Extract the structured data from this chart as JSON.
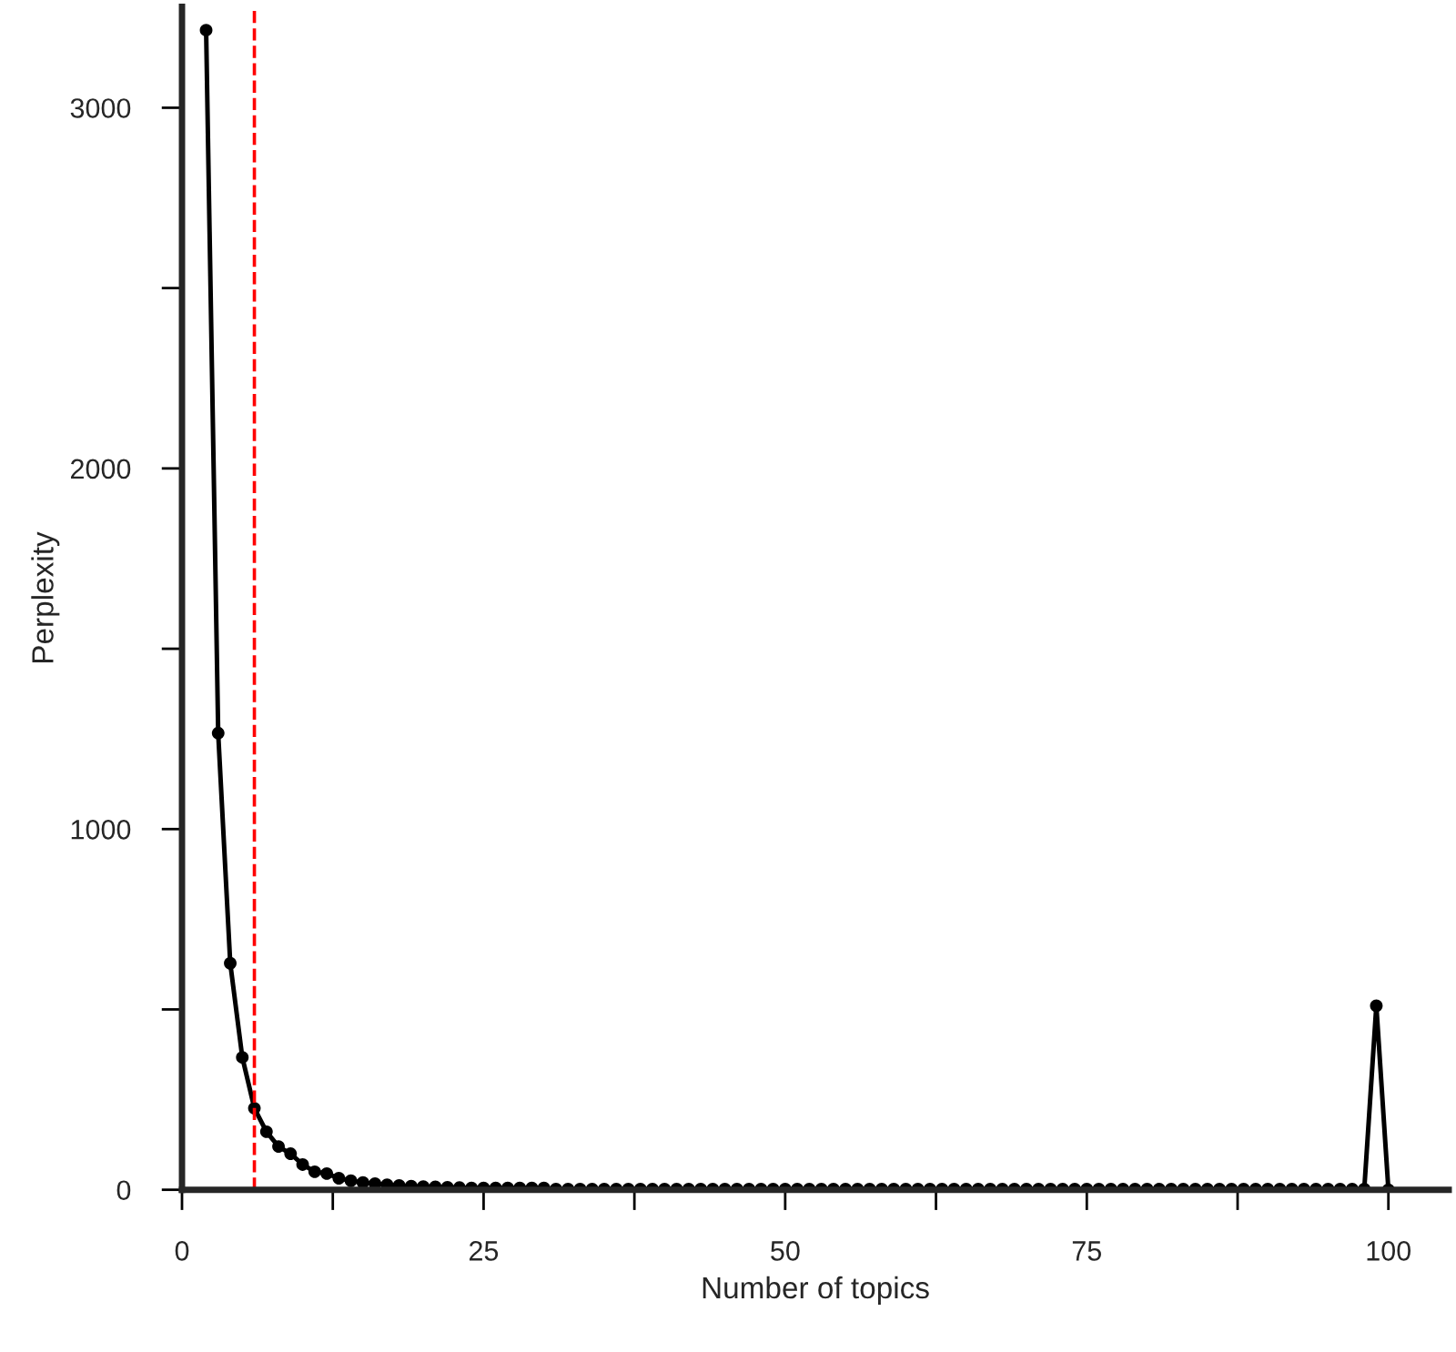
{
  "chart_data": {
    "type": "line",
    "xlabel": "Number of topics",
    "ylabel": "Perplexity",
    "x": [
      2,
      3,
      4,
      5,
      6,
      7,
      8,
      9,
      10,
      11,
      12,
      13,
      14,
      15,
      16,
      17,
      18,
      19,
      20,
      21,
      22,
      23,
      24,
      25,
      26,
      27,
      28,
      29,
      30,
      31,
      32,
      33,
      34,
      35,
      36,
      37,
      38,
      39,
      40,
      41,
      42,
      43,
      44,
      45,
      46,
      47,
      48,
      49,
      50,
      51,
      52,
      53,
      54,
      55,
      56,
      57,
      58,
      59,
      60,
      61,
      62,
      63,
      64,
      65,
      66,
      67,
      68,
      69,
      70,
      71,
      72,
      73,
      74,
      75,
      76,
      77,
      78,
      79,
      80,
      81,
      82,
      83,
      84,
      85,
      86,
      87,
      88,
      89,
      90,
      91,
      92,
      93,
      94,
      95,
      96,
      97,
      98,
      99,
      100
    ],
    "series": [
      {
        "color": "#000000",
        "values": [
          3215,
          1266,
          628,
          367,
          226,
          161,
          120,
          100,
          70,
          50,
          45,
          32,
          25,
          20,
          17,
          14,
          12,
          10,
          9,
          8,
          7,
          6,
          5,
          5,
          5,
          5,
          5,
          5,
          5,
          2,
          2,
          2,
          2,
          2,
          2,
          2,
          2,
          2,
          2,
          2,
          2,
          2,
          2,
          2,
          2,
          2,
          2,
          2,
          2,
          2,
          2,
          2,
          2,
          2,
          2,
          2,
          2,
          2,
          2,
          2,
          2,
          2,
          2,
          2,
          2,
          2,
          2,
          2,
          2,
          2,
          2,
          2,
          2,
          2,
          2,
          2,
          2,
          2,
          2,
          2,
          2,
          2,
          2,
          2,
          2,
          2,
          2,
          2,
          2,
          2,
          2,
          2,
          2,
          2,
          2,
          2,
          2,
          510,
          0
        ]
      }
    ],
    "xlim": [
      0,
      105
    ],
    "xticks": [
      0,
      {
        "value": 12.5,
        "label": null
      },
      25,
      {
        "value": 37.5,
        "label": null
      },
      50,
      {
        "value": 62.5,
        "label": null
      },
      75,
      {
        "value": 87.5,
        "label": null
      },
      100
    ],
    "ylim": [
      0,
      3280
    ],
    "yticks": [
      0,
      {
        "value": 500,
        "label": null
      },
      1000,
      {
        "value": 1500,
        "label": null
      },
      2000,
      {
        "value": 2500,
        "label": null
      },
      3000
    ],
    "ref_lines": [
      {
        "axis": "x",
        "value": 6,
        "color": "#ff0000",
        "line_style": "dashed"
      }
    ],
    "marker": "circle",
    "line_style": "solid",
    "grid": false,
    "legend": false
  }
}
